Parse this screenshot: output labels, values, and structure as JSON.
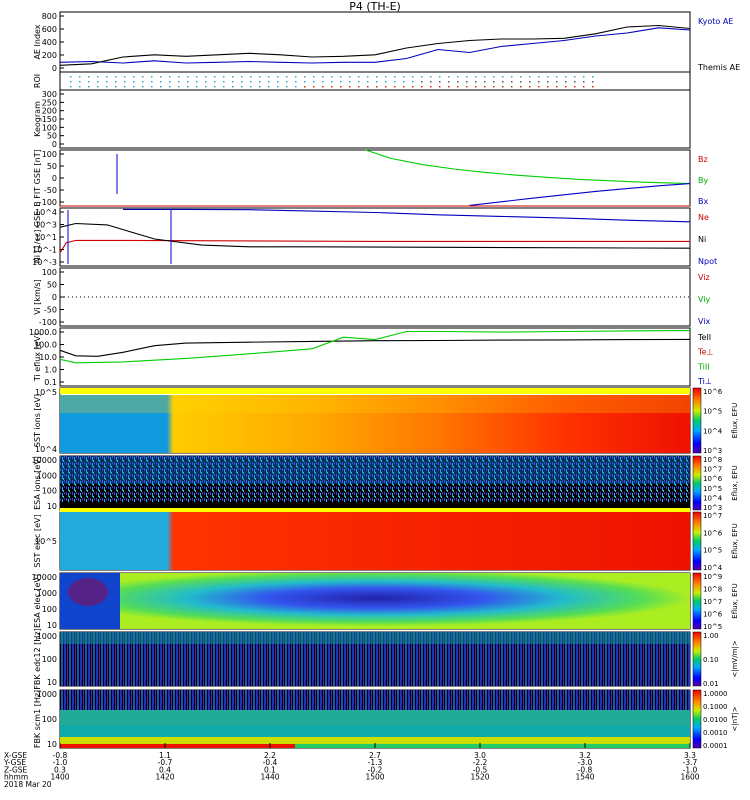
{
  "title": "P4 (TH-E)",
  "chart_data": {
    "type": "line",
    "title": "P4 (TH-E)",
    "date_label": "2018 Mar 20",
    "x_ticks": [
      "1400",
      "1420",
      "1440",
      "1500",
      "1520",
      "1540",
      "1600"
    ],
    "x_axis_rows": [
      {
        "label": "X-GSE",
        "values": [
          "-0.8",
          "1.1",
          "2.2",
          "2.7",
          "3.0",
          "3.2",
          "3.3"
        ]
      },
      {
        "label": "Y-GSE",
        "values": [
          "-1.0",
          "-0.7",
          "-0.4",
          "-1.3",
          "-2.2",
          "-3.0",
          "-3.7"
        ]
      },
      {
        "label": "Z-GSE",
        "values": [
          "0.3",
          "0.4",
          "0.1",
          "-0.2",
          "-0.5",
          "-0.8",
          "-1.0"
        ]
      },
      {
        "label": "hhmm",
        "values": [
          "1400",
          "1420",
          "1440",
          "1500",
          "1520",
          "1540",
          "1600"
        ]
      }
    ],
    "panels": [
      {
        "key": "ae",
        "ylabel": "AE Index",
        "ticks": [
          "0",
          "200",
          "400",
          "600",
          "800"
        ],
        "ylim": [
          0,
          800
        ],
        "legend": [
          "Kyoto AE",
          "Themis AE"
        ],
        "legend_colors": [
          "#0000bb",
          "#000000"
        ],
        "series": [
          {
            "name": "Kyoto AE",
            "color": "#0000bb",
            "x": [
              1400,
              1410,
              1420,
              1430,
              1440,
              1450,
              1460,
              1470,
              1480,
              1490,
              1500,
              1510,
              1520,
              1530,
              1540,
              1550,
              1560,
              1570,
              1580,
              1590,
              1600
            ],
            "y": [
              130,
              140,
              120,
              150,
              120,
              130,
              140,
              130,
              120,
              130,
              130,
              180,
              300,
              260,
              340,
              380,
              420,
              480,
              520,
              590,
              560
            ]
          },
          {
            "name": "Themis AE",
            "color": "#000000",
            "x": [
              1400,
              1410,
              1420,
              1430,
              1440,
              1450,
              1460,
              1470,
              1480,
              1490,
              1500,
              1510,
              1520,
              1530,
              1540,
              1550,
              1560,
              1570,
              1580,
              1590,
              1600
            ],
            "y": [
              90,
              110,
              200,
              230,
              210,
              230,
              250,
              230,
              200,
              210,
              230,
              320,
              380,
              420,
              440,
              440,
              450,
              510,
              600,
              620,
              580
            ]
          }
        ]
      },
      {
        "key": "roi",
        "ylabel": "ROI"
      },
      {
        "key": "keogram",
        "ylabel": "Keogram",
        "ticks": [
          "0",
          "50",
          "100",
          "150",
          "200",
          "250",
          "300"
        ],
        "ylim": [
          0,
          300
        ]
      },
      {
        "key": "bfit",
        "ylabel": "B FIT GSE [nT]",
        "ticks": [
          "-100",
          "-50",
          "0",
          "50",
          "100"
        ],
        "ylim": [
          -100,
          100
        ],
        "legend": [
          "Bz",
          "By",
          "Bx"
        ],
        "legend_colors": [
          "#cc0000",
          "#00aa00",
          "#0000bb"
        ],
        "series": [
          {
            "name": "By",
            "color": "#00cc00",
            "x": [
              1497,
              1505,
              1515,
              1525,
              1535,
              1545,
              1555,
              1565,
              1575,
              1585,
              1600
            ],
            "y": [
              100,
              70,
              48,
              32,
              20,
              10,
              2,
              -5,
              -10,
              -15,
              -20
            ]
          },
          {
            "name": "Bx",
            "color": "#0000cc",
            "x": [
              1530,
              1540,
              1550,
              1560,
              1570,
              1580,
              1590,
              1600
            ],
            "y": [
              -98,
              -85,
              -72,
              -60,
              -48,
              -38,
              -28,
              -20
            ]
          },
          {
            "name": "Bz",
            "color": "#cc0000",
            "x": [
              1400,
              1600
            ],
            "y": [
              -100,
              -100
            ]
          }
        ]
      },
      {
        "key": "ni",
        "ylabel": "Ni [1/cc] GSE",
        "ticks": [
          "10^-3",
          "10^-1",
          "10^1",
          "10^3",
          "10^4"
        ],
        "legend": [
          "Ne",
          "Ni",
          "Npot"
        ],
        "legend_colors": [
          "#cc0000",
          "#000000",
          "#0000bb"
        ],
        "series": [
          {
            "name": "Ne",
            "color": "#cc0000",
            "x": [
              1400,
              1402,
              1405,
              1420,
              1500,
              1600
            ],
            "y": [
              0.05,
              1,
              2,
              2,
              1.5,
              1.5
            ]
          },
          {
            "name": "Ni",
            "color": "#000000",
            "x": [
              1400,
              1405,
              1415,
              1430,
              1445,
              1460,
              1480,
              1600
            ],
            "y": [
              100,
              300,
              200,
              3,
              0.5,
              0.3,
              0.3,
              0.2
            ]
          },
          {
            "name": "Npot",
            "color": "#0000bb",
            "x": [
              1420,
              1440,
              1460,
              1480,
              1500,
              1520,
              1540,
              1560,
              1580,
              1600
            ],
            "y": [
              20000,
              20000,
              18000,
              12000,
              8000,
              4000,
              2500,
              1500,
              800,
              500
            ]
          }
        ]
      },
      {
        "key": "vi",
        "ylabel": "Vi [km/s]",
        "ticks": [
          "-100",
          "-50",
          "0",
          "50",
          "100"
        ],
        "ylim": [
          -150,
          150
        ],
        "legend": [
          "Viz",
          "Viy",
          "Vix"
        ],
        "legend_colors": [
          "#cc0000",
          "#00aa00",
          "#0000bb"
        ]
      },
      {
        "key": "ti",
        "ylabel": "Ti eflux [eV]",
        "ticks": [
          "0.1",
          "1.0",
          "10.0",
          "100.0",
          "1000.0"
        ],
        "legend": [
          "TeII",
          "Te⊥",
          "TiII",
          "Ti⊥"
        ],
        "legend_colors": [
          "#000000",
          "#cc0000",
          "#00aa00",
          "#0000bb"
        ],
        "series": [
          {
            "name": "TeII",
            "color": "#000000",
            "x": [
              1400,
              1405,
              1412,
              1420,
              1430,
              1440,
              1460,
              1480,
              1500,
              1520,
              1540,
              1560,
              1580,
              1600
            ],
            "y": [
              60,
              20,
              18,
              40,
              150,
              250,
              300,
              350,
              400,
              420,
              450,
              470,
              500,
              520
            ]
          },
          {
            "name": "TiII",
            "color": "#00cc00",
            "x": [
              1400,
              1405,
              1420,
              1440,
              1460,
              1480,
              1490,
              1500,
              1510,
              1520,
              1540,
              1560,
              1580,
              1600
            ],
            "y": [
              10,
              5,
              6,
              12,
              30,
              80,
              800,
              500,
              2500,
              2500,
              2200,
              2500,
              2800,
              3000
            ]
          }
        ]
      },
      {
        "key": "sst_i",
        "ylabel": "SST ions [eV]",
        "ticks": [
          "10^4",
          "10^5"
        ],
        "cbar_label": "Eflux, EFU",
        "cbar_ticks": [
          "10^3",
          "10^4",
          "10^5",
          "10^6"
        ]
      },
      {
        "key": "esa_i",
        "ylabel": "ESA ions [eV]",
        "ticks": [
          "10",
          "100",
          "1000",
          "10000"
        ],
        "cbar_label": "Eflux, EFU",
        "cbar_ticks": [
          "10^3",
          "10^4",
          "10^5",
          "10^6",
          "10^7",
          "10^8"
        ]
      },
      {
        "key": "sst_e",
        "ylabel": "SST elec [eV]",
        "ticks": [
          "10^5"
        ],
        "cbar_label": "Eflux, EFU",
        "cbar_ticks": [
          "10^4",
          "10^5",
          "10^6",
          "10^7"
        ]
      },
      {
        "key": "esa_e",
        "ylabel": "ESA elec [eV]",
        "ticks": [
          "10",
          "100",
          "1000",
          "10000"
        ],
        "cbar_label": "Eflux, EFU",
        "cbar_ticks": [
          "10^5",
          "10^6",
          "10^7",
          "10^8",
          "10^9"
        ]
      },
      {
        "key": "fbk_e",
        "ylabel": "FBK edc12 [Hz]",
        "ticks": [
          "10",
          "100",
          "1000"
        ],
        "cbar_label": "<|mV/m|>",
        "cbar_ticks": [
          "0.01",
          "0.10",
          "1.00"
        ]
      },
      {
        "key": "fbk_b",
        "ylabel": "FBK scm1 [Hz]",
        "ticks": [
          "10",
          "100",
          "1000"
        ],
        "cbar_label": "<|nT|>",
        "cbar_ticks": [
          "0.0001",
          "0.0010",
          "0.0100",
          "0.1000",
          "1.0000"
        ]
      }
    ]
  }
}
